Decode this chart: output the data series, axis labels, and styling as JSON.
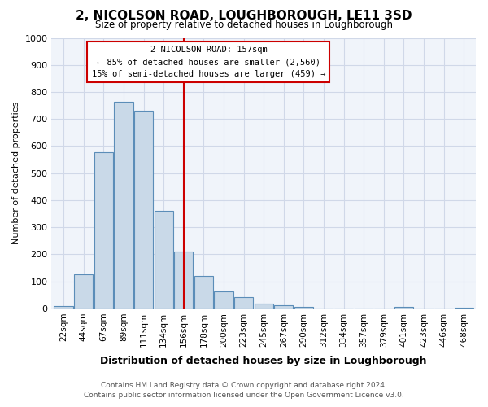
{
  "title": "2, NICOLSON ROAD, LOUGHBOROUGH, LE11 3SD",
  "subtitle": "Size of property relative to detached houses in Loughborough",
  "xlabel": "Distribution of detached houses by size in Loughborough",
  "ylabel": "Number of detached properties",
  "bar_labels": [
    "22sqm",
    "44sqm",
    "67sqm",
    "89sqm",
    "111sqm",
    "134sqm",
    "156sqm",
    "178sqm",
    "200sqm",
    "223sqm",
    "245sqm",
    "267sqm",
    "290sqm",
    "312sqm",
    "334sqm",
    "357sqm",
    "379sqm",
    "401sqm",
    "423sqm",
    "446sqm",
    "468sqm"
  ],
  "bar_heights": [
    10,
    127,
    578,
    765,
    730,
    362,
    210,
    120,
    62,
    42,
    18,
    12,
    5,
    0,
    0,
    0,
    0,
    5,
    0,
    0,
    2
  ],
  "bar_color": "#c9d9e8",
  "bar_edge_color": "#5b8db8",
  "vline_x": 6,
  "vline_color": "#cc0000",
  "ylim": [
    0,
    1000
  ],
  "yticks": [
    0,
    100,
    200,
    300,
    400,
    500,
    600,
    700,
    800,
    900,
    1000
  ],
  "annotation_title": "2 NICOLSON ROAD: 157sqm",
  "annotation_line1": "← 85% of detached houses are smaller (2,560)",
  "annotation_line2": "15% of semi-detached houses are larger (459) →",
  "annotation_box_color": "#cc0000",
  "footer_line1": "Contains HM Land Registry data © Crown copyright and database right 2024.",
  "footer_line2": "Contains public sector information licensed under the Open Government Licence v3.0.",
  "grid_color": "#d0d8e8",
  "background_color": "#f0f4fa"
}
